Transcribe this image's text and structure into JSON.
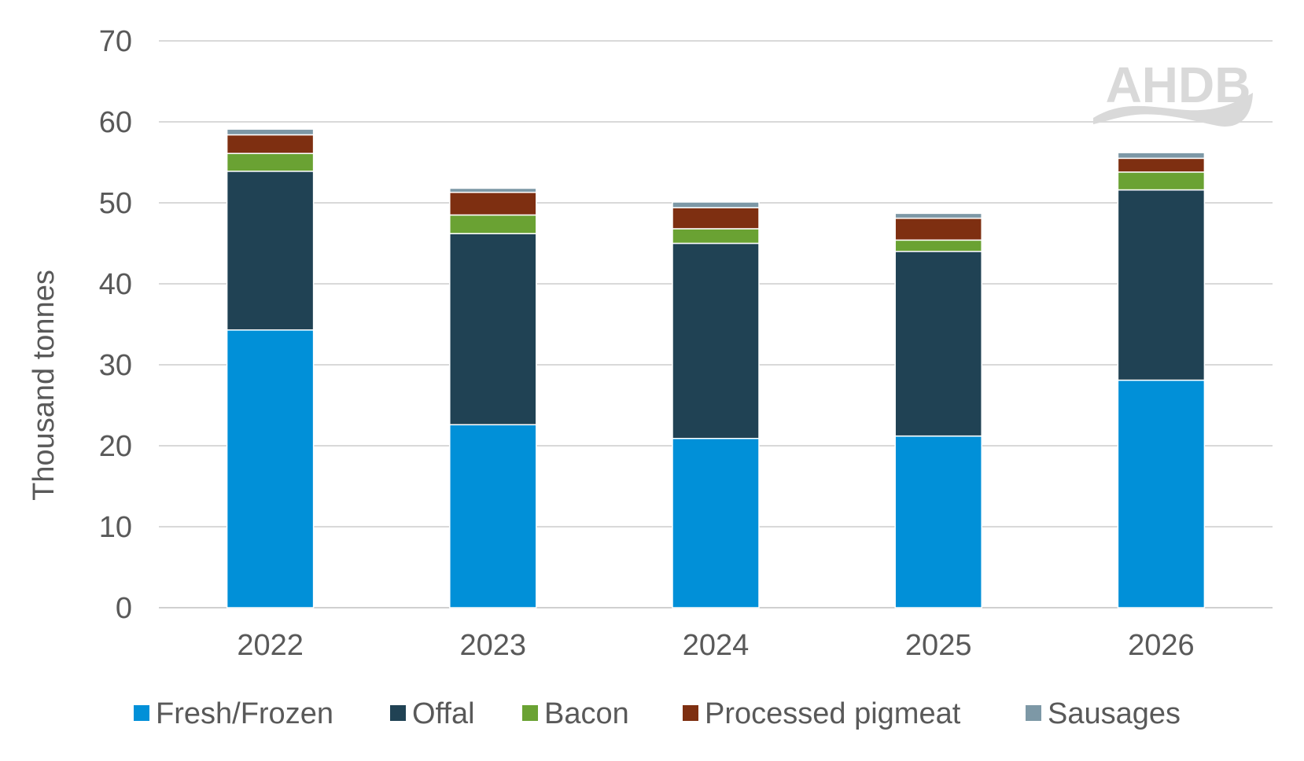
{
  "chart_data": {
    "type": "bar",
    "stacked": true,
    "ylabel": "Thousand tonnes",
    "ylim": [
      0,
      70
    ],
    "yticks": [
      0,
      10,
      20,
      30,
      40,
      50,
      60,
      70
    ],
    "grid": true,
    "legend_position": "bottom",
    "categories": [
      "2022",
      "2023",
      "2024",
      "2025",
      "2026"
    ],
    "series": [
      {
        "name": "Fresh/Frozen",
        "color": "#0190d8",
        "values": [
          34.3,
          22.6,
          20.9,
          21.2,
          28.1
        ]
      },
      {
        "name": "Offal",
        "color": "#204254",
        "values": [
          19.6,
          23.6,
          24.1,
          22.8,
          23.5
        ]
      },
      {
        "name": "Bacon",
        "color": "#6aa233",
        "values": [
          2.2,
          2.3,
          1.8,
          1.4,
          2.2
        ]
      },
      {
        "name": "Processed pigmeat",
        "color": "#7e2f11",
        "values": [
          2.3,
          2.8,
          2.6,
          2.7,
          1.7
        ]
      },
      {
        "name": "Sausages",
        "color": "#7d98a6",
        "values": [
          0.7,
          0.5,
          0.7,
          0.6,
          0.7
        ]
      }
    ]
  },
  "logo": {
    "text": "AHDB"
  }
}
